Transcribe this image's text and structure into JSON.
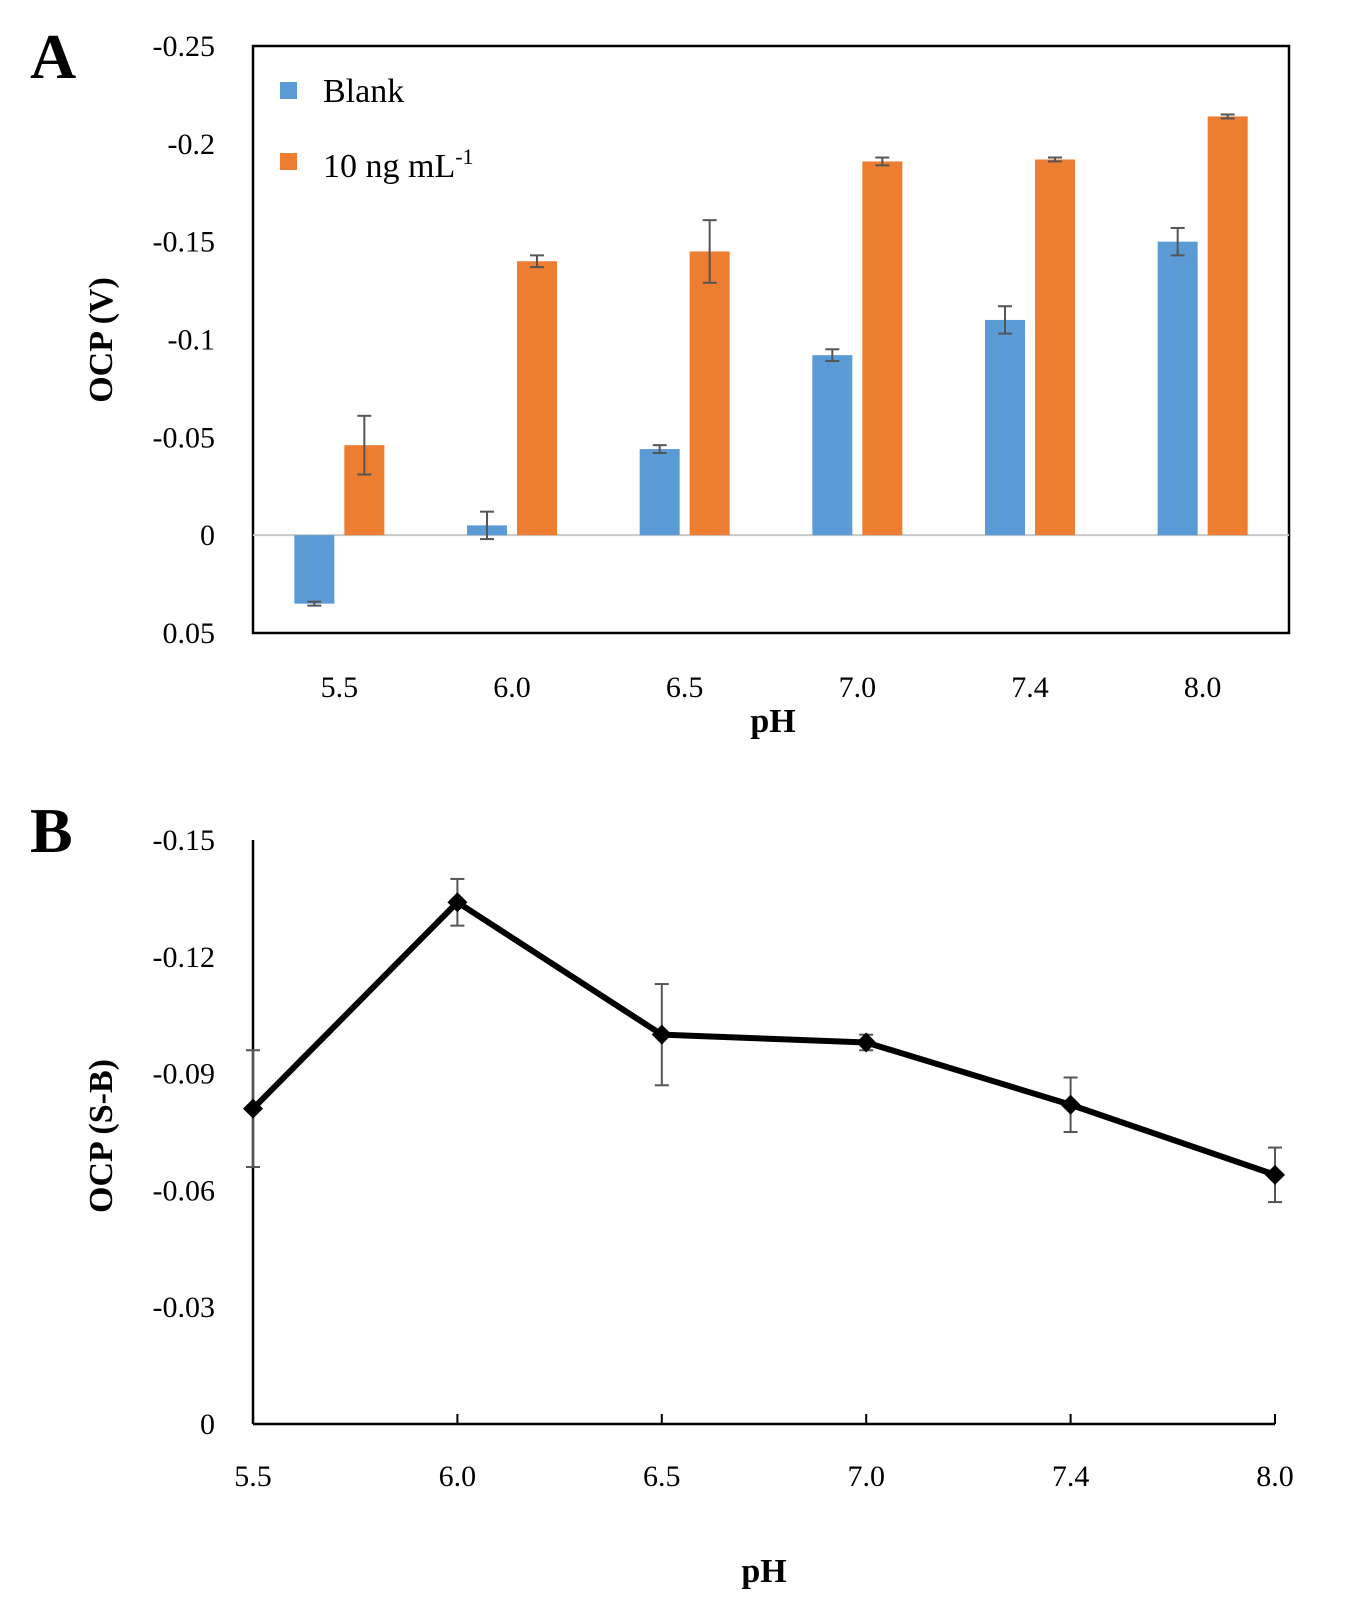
{
  "chart_data": [
    {
      "panel_label": "A",
      "type": "bar",
      "xlabel": "pH",
      "ylabel": "OCP (V)",
      "categories": [
        "5.5",
        "6.0",
        "6.5",
        "7.0",
        "7.4",
        "8.0"
      ],
      "ylim": [
        0.05,
        -0.25
      ],
      "yticks": [
        "-0.25",
        "-0.2",
        "-0.15",
        "-0.1",
        "-0.05",
        "0",
        "0.05"
      ],
      "ytick_values": [
        -0.25,
        -0.2,
        -0.15,
        -0.1,
        -0.05,
        0,
        0.05
      ],
      "legend_position": "top-left",
      "series": [
        {
          "name": "Blank",
          "color": "#5b9bd5",
          "values": [
            0.035,
            -0.005,
            -0.044,
            -0.092,
            -0.11,
            -0.15
          ],
          "errors": [
            0.001,
            0.007,
            0.002,
            0.003,
            0.007,
            0.007
          ]
        },
        {
          "name": "10 ng mL",
          "name_superscript": "-1",
          "color": "#ed7d31",
          "values": [
            -0.046,
            -0.14,
            -0.145,
            -0.191,
            -0.192,
            -0.214
          ],
          "errors": [
            0.015,
            0.003,
            0.016,
            0.002,
            0.001,
            0.001
          ]
        }
      ]
    },
    {
      "panel_label": "B",
      "type": "line",
      "xlabel": "pH",
      "ylabel": "OCP (S-B)",
      "categories": [
        "5.5",
        "6.0",
        "6.5",
        "7.0",
        "7.4",
        "8.0"
      ],
      "ylim": [
        0,
        -0.15
      ],
      "yticks": [
        "-0.15",
        "-0.12",
        "-0.09",
        "-0.06",
        "-0.03",
        "0"
      ],
      "ytick_values": [
        -0.15,
        -0.12,
        -0.09,
        -0.06,
        -0.03,
        0
      ],
      "series": [
        {
          "name": "S-B",
          "color": "#000000",
          "values": [
            -0.081,
            -0.134,
            -0.1,
            -0.098,
            -0.082,
            -0.064
          ],
          "errors": [
            0.015,
            0.006,
            0.013,
            0.002,
            0.007,
            0.007
          ]
        }
      ]
    }
  ]
}
